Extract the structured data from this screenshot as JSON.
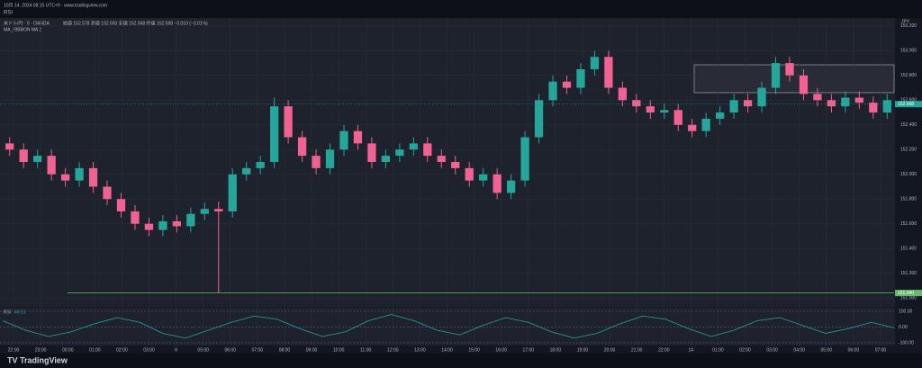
{
  "chart_data": {
    "type": "candlestick",
    "header": "10月 14, 2024 08:15 UTC+9 · www.tradingview.com",
    "indicator_top": "RSI",
    "symbol": "米ドル/円 · 5 · OANDA",
    "ohlc_text": "始値 152.578 高値 152.593 安値 152.568 終値 152.568 −0.010 (−0.01%)",
    "ma_label": "MA_RIBBON MA 2",
    "currency": "JPY",
    "up_color": "#26a69a",
    "down_color": "#f06292",
    "open": [
      152.25,
      152.2,
      152.1,
      152.15,
      152.0,
      151.95,
      152.05,
      151.9,
      151.8,
      151.7,
      151.6,
      151.55,
      151.62,
      151.58,
      151.68,
      151.72,
      151.7,
      152.0,
      152.05,
      152.1,
      152.55,
      152.3,
      152.15,
      152.05,
      152.2,
      152.35,
      152.25,
      152.1,
      152.15,
      152.2,
      152.25,
      152.15,
      152.1,
      152.05,
      151.95,
      152.0,
      151.85,
      151.95,
      152.3,
      152.6,
      152.75,
      152.7,
      152.85,
      152.95,
      152.7,
      152.6,
      152.55,
      152.5,
      152.52,
      152.4,
      152.35,
      152.45,
      152.5,
      152.6,
      152.55,
      152.7,
      152.9,
      152.8,
      152.65,
      152.6,
      152.55,
      152.62,
      152.58,
      152.5
    ],
    "high": [
      152.3,
      152.25,
      152.2,
      152.2,
      152.05,
      152.1,
      152.1,
      151.95,
      151.85,
      151.75,
      151.65,
      151.67,
      151.67,
      151.73,
      151.77,
      151.78,
      152.05,
      152.1,
      152.15,
      152.62,
      152.6,
      152.35,
      152.2,
      152.25,
      152.4,
      152.4,
      152.3,
      152.2,
      152.25,
      152.3,
      152.3,
      152.2,
      152.15,
      152.1,
      152.05,
      152.05,
      152.0,
      152.35,
      152.65,
      152.8,
      152.8,
      152.9,
      153.0,
      153.0,
      152.75,
      152.65,
      152.6,
      152.57,
      152.57,
      152.45,
      152.5,
      152.55,
      152.65,
      152.65,
      152.75,
      152.95,
      152.95,
      152.85,
      152.7,
      152.65,
      152.67,
      152.67,
      152.63,
      152.65
    ],
    "low": [
      152.15,
      152.05,
      152.05,
      151.95,
      151.9,
      151.9,
      151.85,
      151.75,
      151.65,
      151.55,
      151.5,
      151.5,
      151.53,
      151.53,
      151.63,
      151.04,
      151.65,
      151.95,
      152.0,
      152.05,
      152.25,
      152.1,
      152.0,
      152.0,
      152.15,
      152.2,
      152.05,
      152.05,
      152.1,
      152.15,
      152.1,
      152.05,
      152.0,
      151.9,
      151.9,
      151.8,
      151.8,
      151.9,
      152.25,
      152.55,
      152.65,
      152.65,
      152.8,
      152.65,
      152.55,
      152.5,
      152.45,
      152.45,
      152.35,
      152.3,
      152.3,
      152.4,
      152.45,
      152.5,
      152.5,
      152.65,
      152.75,
      152.6,
      152.55,
      152.5,
      152.5,
      152.53,
      152.45,
      152.45
    ],
    "close": [
      152.2,
      152.1,
      152.15,
      152.0,
      151.95,
      152.05,
      151.9,
      151.8,
      151.7,
      151.6,
      151.55,
      151.62,
      151.58,
      151.68,
      151.72,
      151.7,
      152.0,
      152.05,
      152.1,
      152.55,
      152.3,
      152.15,
      152.05,
      152.2,
      152.35,
      152.25,
      152.1,
      152.15,
      152.2,
      152.25,
      152.15,
      152.1,
      152.05,
      151.95,
      152.0,
      151.85,
      151.95,
      152.3,
      152.6,
      152.75,
      152.7,
      152.85,
      152.95,
      152.7,
      152.6,
      152.55,
      152.5,
      152.52,
      152.4,
      152.35,
      152.45,
      152.5,
      152.6,
      152.55,
      152.7,
      152.9,
      152.8,
      152.65,
      152.6,
      152.55,
      152.62,
      152.58,
      152.5,
      152.6
    ],
    "ylim": [
      150.95,
      153.25
    ],
    "yticks": [
      {
        "value": 151.0,
        "label": "151.000"
      },
      {
        "value": 151.2,
        "label": "151.200"
      },
      {
        "value": 151.4,
        "label": "151.400"
      },
      {
        "value": 151.6,
        "label": "151.600"
      },
      {
        "value": 151.8,
        "label": "151.800"
      },
      {
        "value": 152.0,
        "label": "152.000"
      },
      {
        "value": 152.2,
        "label": "152.200"
      },
      {
        "value": 152.4,
        "label": "152.400"
      },
      {
        "value": 152.6,
        "label": "152.600"
      },
      {
        "value": 152.8,
        "label": "152.800"
      },
      {
        "value": 153.0,
        "label": "153.000"
      },
      {
        "value": 153.2,
        "label": "153.200"
      }
    ],
    "hline": {
      "value": 151.04,
      "label": "151.040",
      "color": "#66bb6a"
    },
    "last": {
      "value": 152.568,
      "label": "152.568"
    },
    "time_labels": [
      "22:00",
      "23:00",
      "00:00",
      "01:00",
      "02:00",
      "03:00",
      "6",
      "05:00",
      "06:00",
      "07:00",
      "08:00",
      "09:00",
      "10:00",
      "11:00",
      "12:00",
      "13:00",
      "14:00",
      "15:00",
      "16:00",
      "17:00",
      "18:00",
      "19:00",
      "20:00",
      "21:00",
      "22:00",
      "14",
      "01:00",
      "02:00",
      "03:00",
      "04:00",
      "05:00",
      "06:00",
      "07:00"
    ],
    "rsi": {
      "name": "RSI",
      "value_label": "49.51",
      "color": "#26a69a",
      "values": [
        40,
        -20,
        -60,
        -30,
        20,
        60,
        30,
        -40,
        -70,
        -20,
        30,
        70,
        50,
        -10,
        -60,
        -30,
        40,
        80,
        40,
        -20,
        -50,
        10,
        60,
        30,
        -30,
        -70,
        -40,
        20,
        70,
        50,
        -10,
        -60,
        -20,
        40,
        60,
        10,
        -40,
        -10,
        30,
        -5
      ],
      "ylim": [
        -100,
        100
      ],
      "yticks": [
        {
          "value": 100,
          "label": "100.00"
        },
        {
          "value": 0,
          "label": "0.00"
        },
        {
          "value": -100,
          "label": "-100.00"
        }
      ]
    },
    "brand": "TradingView"
  }
}
